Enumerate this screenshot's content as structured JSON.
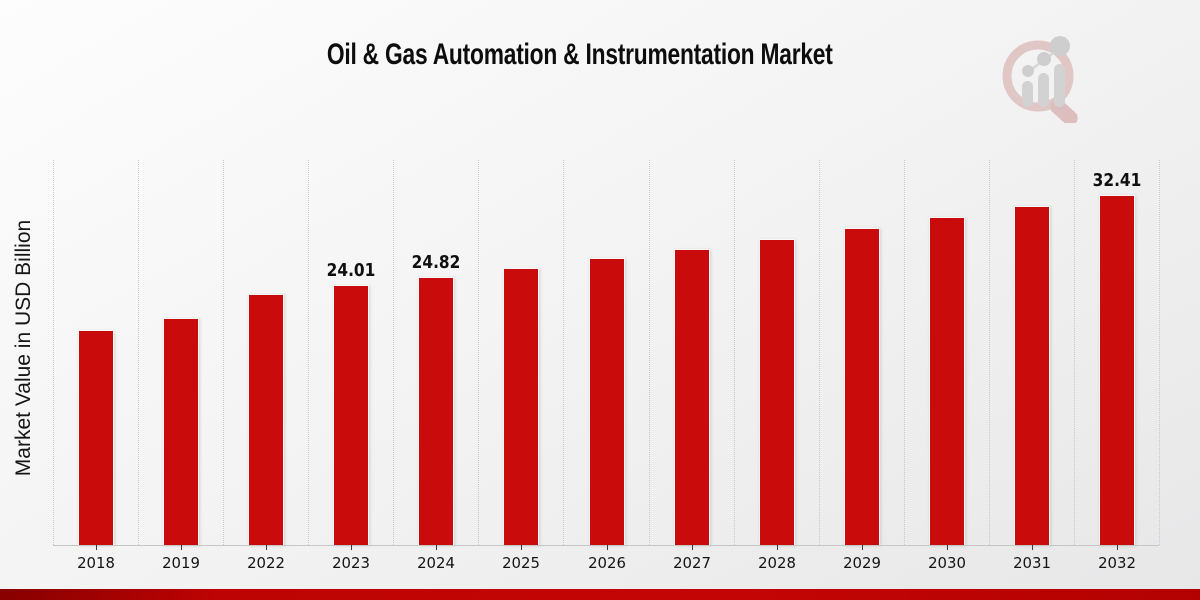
{
  "chart_data": {
    "type": "bar",
    "title": "Oil & Gas Automation & Instrumentation Market",
    "xlabel": "",
    "ylabel": "Market Value in USD Billion",
    "categories": [
      "2018",
      "2019",
      "2022",
      "2023",
      "2024",
      "2025",
      "2026",
      "2027",
      "2028",
      "2029",
      "2030",
      "2031",
      "2032"
    ],
    "values": [
      19.86,
      21.02,
      23.22,
      24.01,
      24.82,
      25.66,
      26.53,
      27.43,
      28.36,
      29.32,
      30.32,
      31.35,
      32.41
    ],
    "data_labels": [
      "",
      "",
      "",
      "24.01",
      "24.82",
      "",
      "",
      "",
      "",
      "",
      "",
      "",
      "32.41"
    ],
    "ylim": [
      0,
      35.75
    ],
    "bar_color": "#c90b0b",
    "bar_edge_color": "#f7f7f7",
    "grid": "vertical-dotted",
    "gridline_color": "#c9c9c9",
    "axis_line_color": "#c6c6c6",
    "legend_position": "none"
  },
  "logo": {
    "name": "market-research-future-logo",
    "ring_color": "#ddbcbc",
    "handle_color": "#d8b2b2",
    "bar_color": "#cbcbcb",
    "dot_color": "#c6c6c6"
  },
  "footer": {
    "band_gradient": [
      "#870000",
      "#bd0303",
      "#c40505",
      "#b30101"
    ]
  }
}
